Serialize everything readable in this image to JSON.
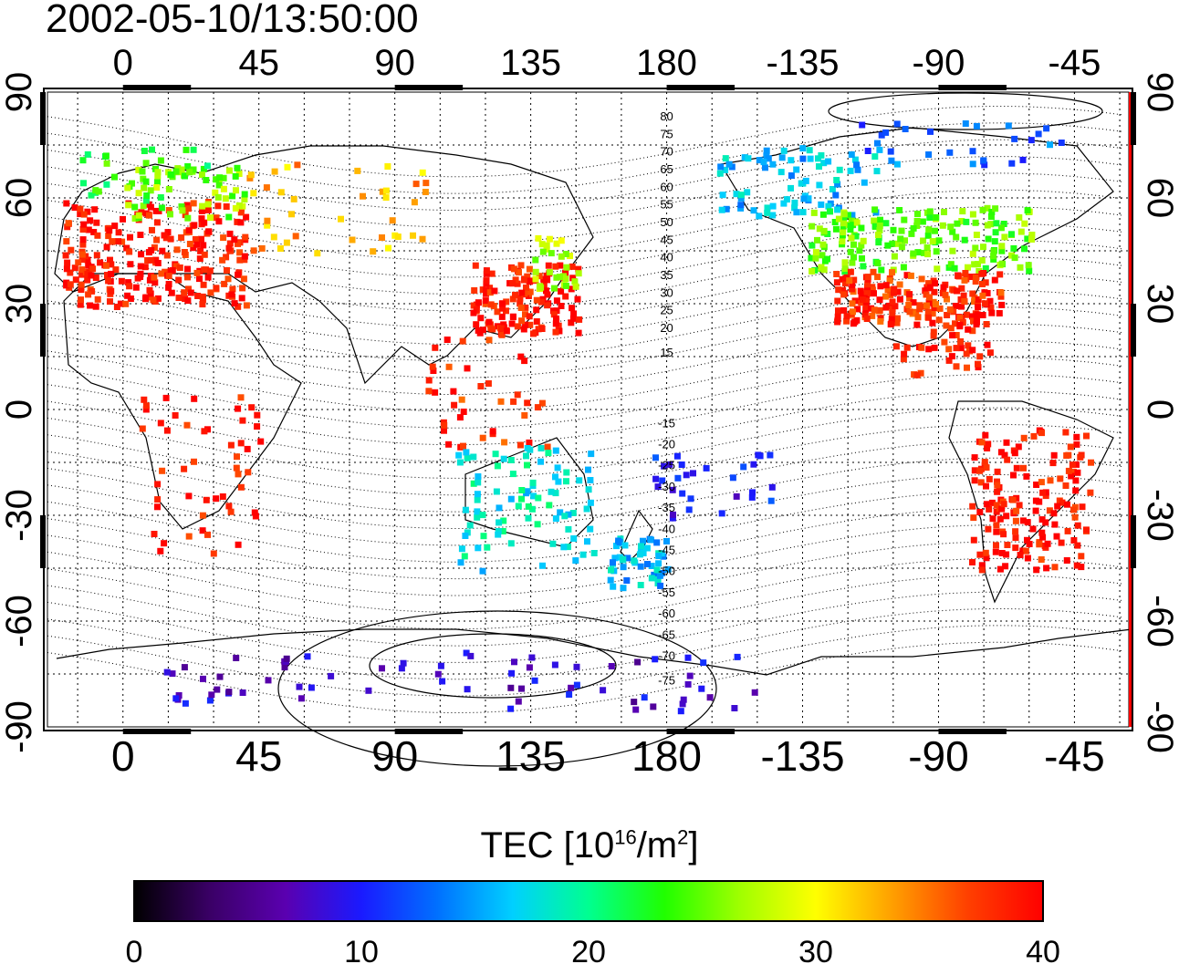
{
  "title": "2002-05-10/13:50:00",
  "colorbar": {
    "label_prefix": "TEC  [10",
    "label_exp1": "16",
    "label_mid": "/m",
    "label_exp2": "2",
    "label_suffix": "]",
    "min": 0,
    "max": 40,
    "ticks": [
      "0",
      "10",
      "20",
      "30",
      "40"
    ],
    "colors": [
      "#000000",
      "#3a0066",
      "#5a00b0",
      "#1a1aff",
      "#0070ff",
      "#00d0ff",
      "#00ff90",
      "#20ff00",
      "#a0ff00",
      "#ffff00",
      "#ffa000",
      "#ff4000",
      "#ff0000"
    ]
  },
  "axes": {
    "top_lon_ticks": [
      "0",
      "45",
      "90",
      "135",
      "180",
      "-135",
      "-90",
      "-45"
    ],
    "bottom_lon_ticks": [
      "0",
      "45",
      "90",
      "135",
      "180",
      "-135",
      "-90",
      "-45"
    ],
    "left_lat_ticks": [
      "90",
      "60",
      "30",
      "0",
      "-30",
      "-60",
      "-90"
    ],
    "right_lat_ticks": [
      "90",
      "60",
      "30",
      "0",
      "-30",
      "-60",
      "-90"
    ],
    "lon_range": [
      -25,
      333
    ],
    "lat_range": [
      -90,
      90
    ]
  },
  "contour_labels_north": [
    "80",
    "75",
    "70",
    "65",
    "60",
    "55",
    "50",
    "45",
    "40",
    "35",
    "30",
    "25",
    "20",
    "15"
  ],
  "contour_labels_south": [
    "-15",
    "-20",
    "-25",
    "-30",
    "-35",
    "-40",
    "-45",
    "-50",
    "-55",
    "-60",
    "-65",
    "-70",
    "-75"
  ],
  "tec_regions": [
    {
      "name": "europe",
      "lon": [
        -20,
        40
      ],
      "lat": [
        30,
        60
      ],
      "tec": 39,
      "n": 260
    },
    {
      "name": "europe-north",
      "lon": [
        0,
        40
      ],
      "lat": [
        55,
        70
      ],
      "tec": 26,
      "n": 60
    },
    {
      "name": "scandinavia",
      "lon": [
        -15,
        30
      ],
      "lat": [
        60,
        75
      ],
      "tec": 23,
      "n": 30
    },
    {
      "name": "russia",
      "lon": [
        40,
        100
      ],
      "lat": [
        45,
        72
      ],
      "tec": 33,
      "n": 40
    },
    {
      "name": "east-asia",
      "lon": [
        115,
        150
      ],
      "lat": [
        22,
        42
      ],
      "tec": 39,
      "n": 140
    },
    {
      "name": "japan",
      "lon": [
        135,
        150
      ],
      "lat": [
        35,
        50
      ],
      "tec": 27,
      "n": 30
    },
    {
      "name": "se-asia",
      "lon": [
        100,
        140
      ],
      "lat": [
        -10,
        22
      ],
      "tec": 38,
      "n": 40
    },
    {
      "name": "africa",
      "lon": [
        5,
        45
      ],
      "lat": [
        -40,
        5
      ],
      "tec": 39,
      "n": 50
    },
    {
      "name": "australia",
      "lon": [
        110,
        155
      ],
      "lat": [
        -45,
        -10
      ],
      "tec": 18,
      "n": 90
    },
    {
      "name": "new-zealand",
      "lon": [
        160,
        180
      ],
      "lat": [
        -50,
        -35
      ],
      "tec": 16,
      "n": 50
    },
    {
      "name": "pacific",
      "lon": [
        175,
        215
      ],
      "lat": [
        -30,
        -10
      ],
      "tec": 10,
      "n": 30
    },
    {
      "name": "alaska",
      "lon": [
        195,
        250
      ],
      "lat": [
        55,
        75
      ],
      "tec": 16,
      "n": 80
    },
    {
      "name": "north-america-north",
      "lon": [
        225,
        300
      ],
      "lat": [
        40,
        58
      ],
      "tec": 25,
      "n": 180
    },
    {
      "name": "north-america-south",
      "lon": [
        235,
        290
      ],
      "lat": [
        25,
        40
      ],
      "tec": 38,
      "n": 200
    },
    {
      "name": "central-america",
      "lon": [
        255,
        290
      ],
      "lat": [
        10,
        25
      ],
      "tec": 39,
      "n": 40
    },
    {
      "name": "south-america",
      "lon": [
        280,
        320
      ],
      "lat": [
        -45,
        -5
      ],
      "tec": 39,
      "n": 160
    },
    {
      "name": "antarctica",
      "lon": [
        10,
        210
      ],
      "lat": [
        -85,
        -68
      ],
      "tec": 8,
      "n": 70
    },
    {
      "name": "canada-arctic",
      "lon": [
        240,
        310
      ],
      "lat": [
        70,
        82
      ],
      "tec": 13,
      "n": 30
    }
  ]
}
